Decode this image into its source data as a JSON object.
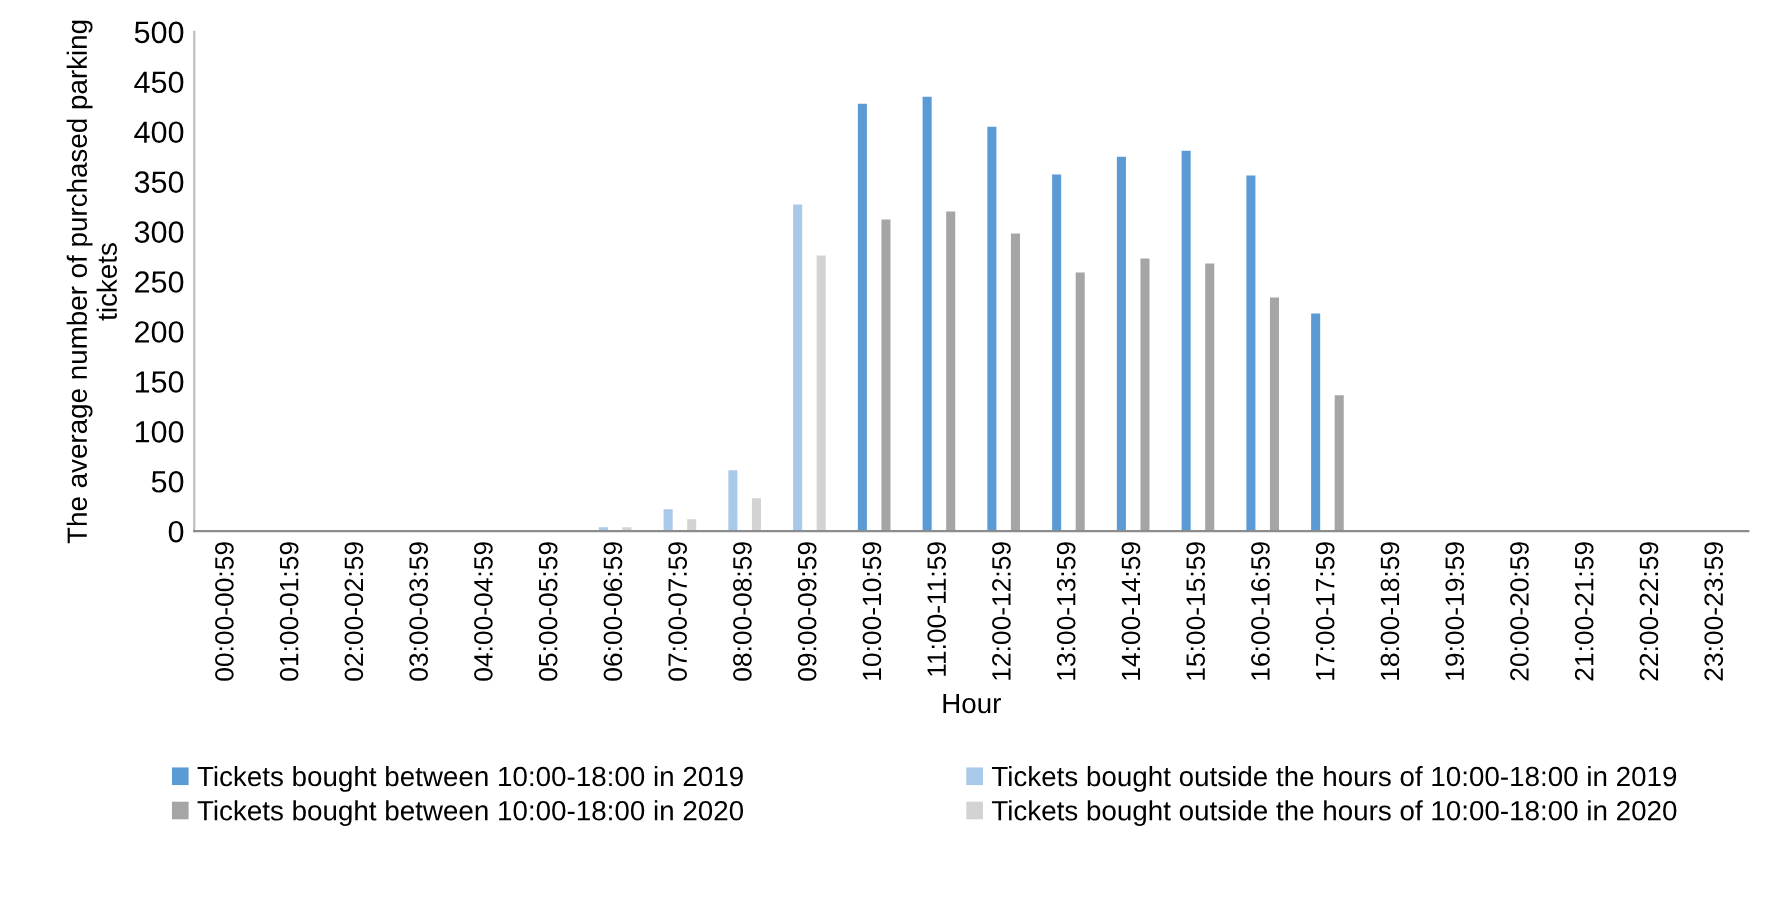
{
  "chart_data": {
    "type": "bar",
    "xlabel": "Hour",
    "ylabel": "The average number of purchased parking\ntickets",
    "categories": [
      "00:00-00:59",
      "01:00-01:59",
      "02:00-02:59",
      "03:00-03:59",
      "04:00-04:59",
      "05:00-05:59",
      "06:00-06:59",
      "07:00-07:59",
      "08:00-08:59",
      "09:00-09:59",
      "10:00-10:59",
      "11:00-11:59",
      "12:00-12:59",
      "13:00-13:59",
      "14:00-14:59",
      "15:00-15:59",
      "16:00-16:59",
      "17:00-17:59",
      "18:00-18:59",
      "19:00-19:59",
      "20:00-20:59",
      "21:00-21:59",
      "22:00-22:59",
      "23:00-23:59"
    ],
    "series": [
      {
        "name": "Tickets bought between 10:00-18:00 in 2019",
        "color": "#5b9bd5",
        "values": [
          null,
          null,
          null,
          null,
          null,
          null,
          null,
          null,
          null,
          null,
          428,
          435,
          405,
          357,
          375,
          381,
          356,
          218,
          null,
          null,
          null,
          null,
          null,
          null
        ]
      },
      {
        "name": "Tickets bought between 10:00-18:00 in 2020",
        "color": "#a5a5a5",
        "values": [
          null,
          null,
          null,
          null,
          null,
          null,
          null,
          null,
          null,
          null,
          312,
          320,
          298,
          259,
          273,
          268,
          234,
          136,
          null,
          null,
          null,
          null,
          null,
          null
        ]
      },
      {
        "name": "Tickets bought outside the hours of 10:00-18:00 in 2019",
        "color": "#a9c9ea",
        "values": [
          1,
          1,
          1,
          1,
          1,
          1,
          4,
          22,
          61,
          327,
          null,
          null,
          null,
          null,
          null,
          null,
          null,
          null,
          1,
          1,
          1,
          1,
          1,
          1
        ]
      },
      {
        "name": "Tickets bought outside the hours of 10:00-18:00 in 2020",
        "color": "#d3d3d3",
        "values": [
          1,
          1,
          1,
          1,
          1,
          1,
          4,
          12,
          33,
          276,
          null,
          null,
          null,
          null,
          null,
          null,
          null,
          null,
          1,
          1,
          1,
          1,
          1,
          1
        ]
      }
    ],
    "ylim": [
      0,
      500
    ],
    "yticks": [
      0,
      50,
      100,
      150,
      200,
      250,
      300,
      350,
      400,
      450,
      500
    ],
    "legend": "bottom"
  }
}
